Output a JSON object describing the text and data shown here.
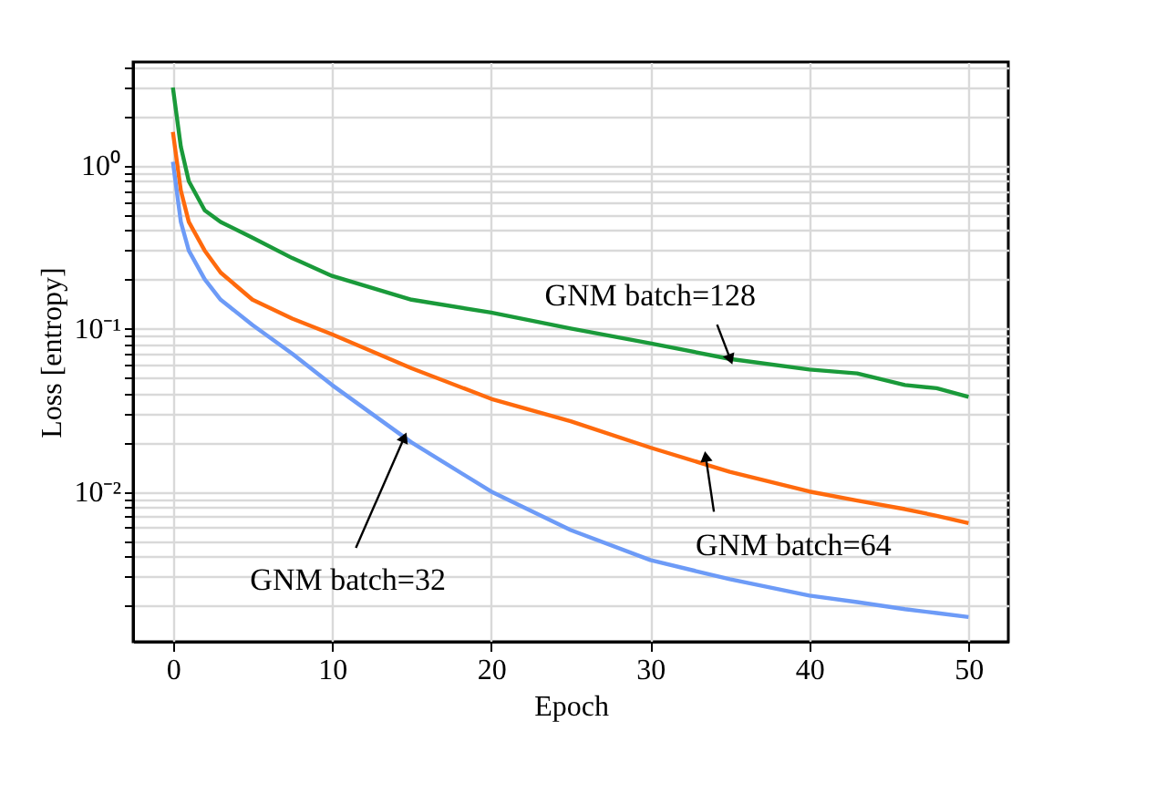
{
  "chart_data": {
    "type": "line",
    "xlabel": "Epoch",
    "ylabel": "Loss  [entropy]",
    "log": "y",
    "grid": true,
    "line_style": "solid",
    "marker": "none",
    "x": [
      0,
      0.5,
      1,
      2,
      3,
      5,
      7.5,
      10,
      15,
      20,
      25,
      30,
      35,
      40,
      43,
      46,
      48,
      50
    ],
    "series": [
      {
        "color": "#1a9a3a",
        "values": [
          3.0,
          1.3,
          0.8,
          0.53,
          0.45,
          0.36,
          0.27,
          0.21,
          0.15,
          0.125,
          0.1,
          0.081,
          0.065,
          0.056,
          0.053,
          0.045,
          0.043,
          0.038
        ]
      },
      {
        "color": "#ff6a0d",
        "values": [
          1.6,
          0.7,
          0.45,
          0.3,
          0.22,
          0.15,
          0.115,
          0.092,
          0.057,
          0.037,
          0.027,
          0.0186,
          0.0132,
          0.01,
          0.0088,
          0.0078,
          0.0071,
          0.0064
        ]
      },
      {
        "color": "#6d9bf7",
        "values": [
          1.05,
          0.45,
          0.3,
          0.2,
          0.15,
          0.105,
          0.07,
          0.045,
          0.02,
          0.01,
          0.0058,
          0.0038,
          0.0029,
          0.0023,
          0.0021,
          0.0019,
          0.0018,
          0.0017
        ]
      }
    ],
    "xlim": [
      -2.5,
      52.5
    ],
    "xticks": [
      0,
      10,
      20,
      30,
      40,
      50
    ],
    "ylim": [
      0.0012,
      4.3
    ],
    "yticks": [
      {
        "value": 0.002,
        "label": null
      },
      {
        "value": 0.003,
        "label": null
      },
      {
        "value": 0.004,
        "label": null
      },
      {
        "value": 0.005,
        "label": null
      },
      {
        "value": 0.006,
        "label": null
      },
      {
        "value": 0.007,
        "label": null
      },
      {
        "value": 0.008,
        "label": null
      },
      {
        "value": 0.009,
        "label": null
      },
      {
        "value": 0.01,
        "label": "10⁻²"
      },
      {
        "value": 0.02,
        "label": null
      },
      {
        "value": 0.03,
        "label": null
      },
      {
        "value": 0.04,
        "label": null
      },
      {
        "value": 0.05,
        "label": null
      },
      {
        "value": 0.06,
        "label": null
      },
      {
        "value": 0.07,
        "label": null
      },
      {
        "value": 0.08,
        "label": null
      },
      {
        "value": 0.09,
        "label": null
      },
      {
        "value": 0.1,
        "label": "10⁻¹"
      },
      {
        "value": 0.2,
        "label": null
      },
      {
        "value": 0.3,
        "label": null
      },
      {
        "value": 0.4,
        "label": null
      },
      {
        "value": 0.5,
        "label": null
      },
      {
        "value": 0.6,
        "label": null
      },
      {
        "value": 0.7,
        "label": null
      },
      {
        "value": 0.8,
        "label": null
      },
      {
        "value": 0.9,
        "label": null
      },
      {
        "value": 1,
        "label": "10⁰"
      },
      {
        "value": 2,
        "label": null
      },
      {
        "value": 3,
        "label": null
      },
      {
        "value": 4,
        "label": null
      }
    ],
    "annotations": [
      {
        "text": "GNM batch=128",
        "x": 35,
        "y": 0.066
      },
      {
        "text": "GNM batch=64",
        "x": 33.5,
        "y": 0.016
      },
      {
        "text": "GNM batch=32",
        "x": 14.5,
        "y": 0.021
      }
    ]
  }
}
